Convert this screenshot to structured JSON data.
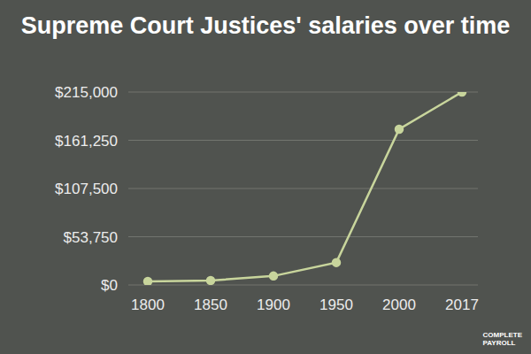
{
  "chart_data": {
    "type": "line",
    "title": "Supreme Court Justices' salaries over time",
    "categories": [
      "1800",
      "1850",
      "1900",
      "1950",
      "2000",
      "2017"
    ],
    "values": [
      4000,
      5000,
      10000,
      25000,
      173600,
      215000
    ],
    "color": "#c8d59c",
    "marker": "circle",
    "ylim": [
      0,
      215000
    ],
    "yticks": [
      {
        "value": 0,
        "label": "$0"
      },
      {
        "value": 53750,
        "label": "$53,750"
      },
      {
        "value": 107500,
        "label": "$107,500"
      },
      {
        "value": 161250,
        "label": "$161,250"
      },
      {
        "value": 215000,
        "label": "$215,000"
      }
    ],
    "grid": true,
    "annotations": [
      "COMPLETE",
      "PAYROLL"
    ]
  }
}
